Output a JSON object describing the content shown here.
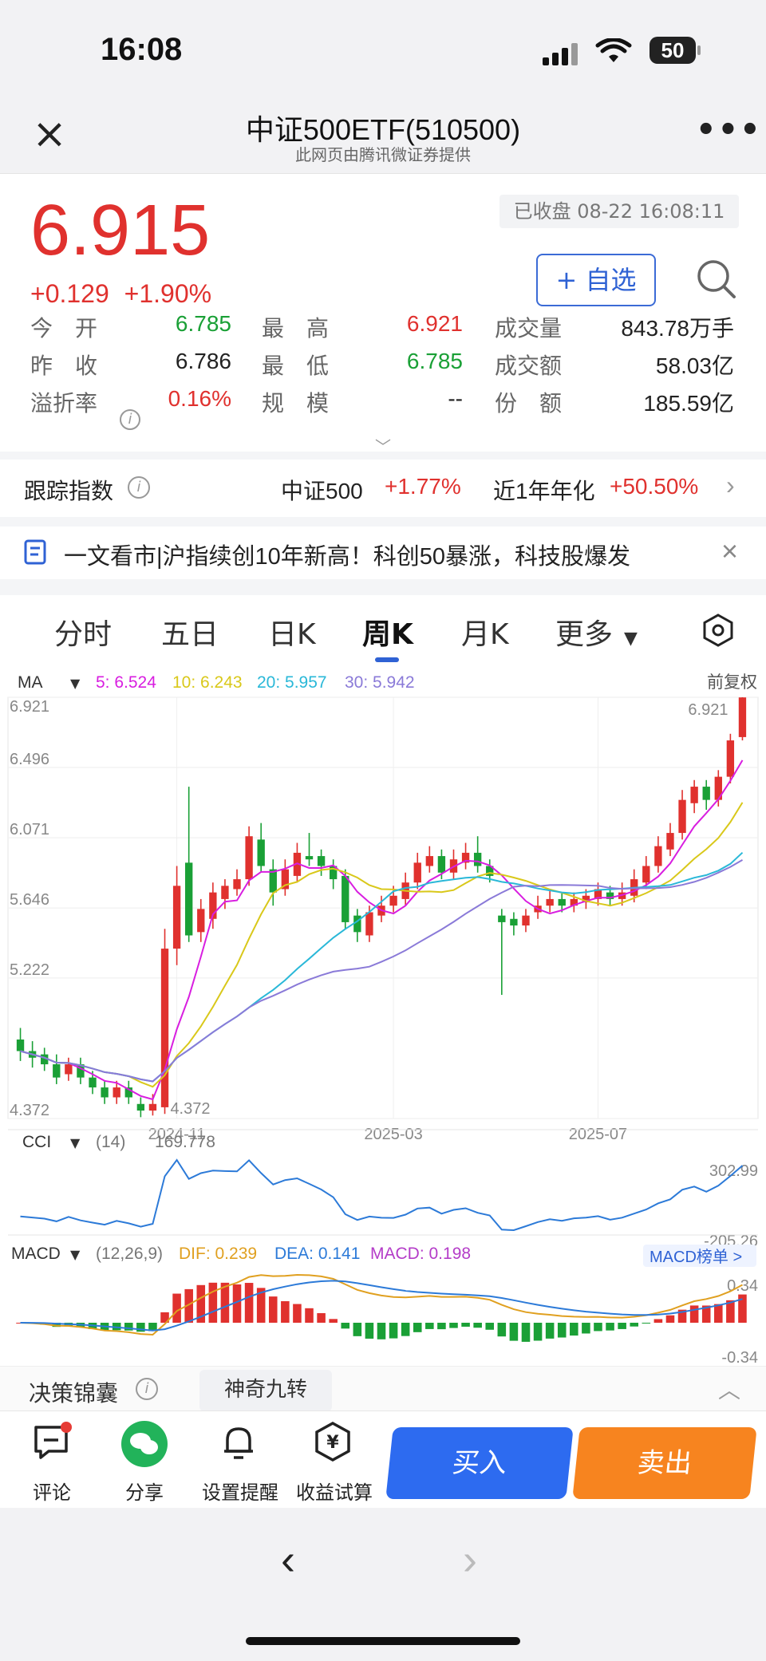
{
  "status_bar": {
    "time": "16:08",
    "battery": "50"
  },
  "nav": {
    "title": "中证500ETF(510500)",
    "subtitle": "此网页由腾讯微证券提供"
  },
  "quote": {
    "price": "6.915",
    "change": "+0.129",
    "change_pct": "+1.90%",
    "status": "已收盘 08-22 16:08:11",
    "watch_label": "+ 自选",
    "stats": [
      [
        {
          "label": "今　开",
          "value": "6.785",
          "color": "g"
        },
        {
          "label": "最　高",
          "value": "6.921",
          "color": "r"
        },
        {
          "label": "成交量",
          "value": "843.78万手",
          "color": "k"
        }
      ],
      [
        {
          "label": "昨　收",
          "value": "6.786",
          "color": "k"
        },
        {
          "label": "最　低",
          "value": "6.785",
          "color": "g"
        },
        {
          "label": "成交额",
          "value": "58.03亿",
          "color": "k"
        }
      ],
      [
        {
          "label": "溢折率",
          "value": "0.16%",
          "color": "r"
        },
        {
          "label": "规　模",
          "value": "--",
          "color": "k"
        },
        {
          "label": "份　额",
          "value": "185.59亿",
          "color": "k"
        }
      ]
    ]
  },
  "tracking": {
    "label": "跟踪指数",
    "index": "中证500",
    "index_chg": "+1.77%",
    "annual_label": "近1年年化",
    "annual": "+50.50%"
  },
  "news": {
    "text": "一文看市|沪指续创10年新高！科创50暴涨，科技股爆发"
  },
  "tabs": [
    "分时",
    "五日",
    "日K",
    "周K",
    "月K",
    "更多"
  ],
  "active_tab": "周K",
  "ma_legend": {
    "label": "MA",
    "ma5": "5: 6.524",
    "ma10": "10: 6.243",
    "ma20": "20: 5.957",
    "ma30": "30: 5.942",
    "adj": "前复权"
  },
  "cci_legend": {
    "label": "CCI",
    "params": "(14)",
    "value": "169.778",
    "max": "302.99",
    "min": "-205.26"
  },
  "macd_legend": {
    "label": "MACD",
    "params": "(12,26,9)",
    "dif": "DIF: 0.239",
    "dea": "DEA: 0.141",
    "macd": "MACD: 0.198",
    "rank": "MACD榜单 >",
    "max": "0.34",
    "min": "-0.34"
  },
  "decision": {
    "label": "决策锦囊",
    "badge": "神奇九转"
  },
  "colors": {
    "up": "#e0312e",
    "down": "#1aa036",
    "ma5": "#d81ee0",
    "ma10": "#d9c81a",
    "ma20": "#2ab8d8",
    "ma30": "#8a7ad8",
    "accent": "#2f62d4"
  },
  "chart_data": {
    "type": "candlestick",
    "title": "",
    "xlabel": "",
    "ylabel": "",
    "y_ticks": [
      "6.921",
      "6.496",
      "6.071",
      "5.646",
      "5.222",
      "4.372"
    ],
    "ylim": [
      4.372,
      6.921
    ],
    "x_ticks": [
      {
        "label": "2024-11",
        "i": 13
      },
      {
        "label": "2025-03",
        "i": 31
      },
      {
        "label": "2025-07",
        "i": 48
      }
    ],
    "last_high_label": "6.921",
    "last_low_label": "4.372",
    "candles": [
      [
        4.85,
        4.78,
        4.92,
        4.72
      ],
      [
        4.78,
        4.74,
        4.84,
        4.68
      ],
      [
        4.76,
        4.7,
        4.8,
        4.66
      ],
      [
        4.7,
        4.62,
        4.76,
        4.58
      ],
      [
        4.64,
        4.7,
        4.74,
        4.6
      ],
      [
        4.7,
        4.62,
        4.74,
        4.58
      ],
      [
        4.62,
        4.56,
        4.66,
        4.52
      ],
      [
        4.56,
        4.5,
        4.6,
        4.46
      ],
      [
        4.5,
        4.56,
        4.6,
        4.46
      ],
      [
        4.56,
        4.5,
        4.6,
        4.46
      ],
      [
        4.46,
        4.42,
        4.5,
        4.38
      ],
      [
        4.42,
        4.46,
        4.52,
        4.39
      ],
      [
        4.44,
        5.4,
        5.52,
        4.4
      ],
      [
        5.4,
        5.78,
        5.9,
        5.3
      ],
      [
        5.92,
        5.48,
        6.38,
        5.44
      ],
      [
        5.5,
        5.64,
        5.7,
        5.44
      ],
      [
        5.58,
        5.74,
        5.8,
        5.52
      ],
      [
        5.7,
        5.78,
        5.82,
        5.64
      ],
      [
        5.76,
        5.82,
        5.88,
        5.72
      ],
      [
        5.82,
        6.08,
        6.14,
        5.78
      ],
      [
        6.06,
        5.9,
        6.16,
        5.86
      ],
      [
        5.88,
        5.74,
        5.94,
        5.66
      ],
      [
        5.76,
        5.88,
        5.94,
        5.72
      ],
      [
        5.84,
        5.98,
        6.04,
        5.8
      ],
      [
        5.96,
        5.94,
        6.1,
        5.9
      ],
      [
        5.96,
        5.9,
        6.0,
        5.84
      ],
      [
        5.9,
        5.82,
        5.94,
        5.76
      ],
      [
        5.84,
        5.56,
        5.88,
        5.52
      ],
      [
        5.6,
        5.5,
        5.64,
        5.44
      ],
      [
        5.48,
        5.62,
        5.66,
        5.44
      ],
      [
        5.6,
        5.66,
        5.72,
        5.56
      ],
      [
        5.66,
        5.72,
        5.78,
        5.62
      ],
      [
        5.7,
        5.8,
        5.86,
        5.66
      ],
      [
        5.8,
        5.92,
        5.98,
        5.76
      ],
      [
        5.9,
        5.96,
        6.02,
        5.86
      ],
      [
        5.96,
        5.86,
        6.0,
        5.82
      ],
      [
        5.86,
        5.94,
        6.0,
        5.82
      ],
      [
        5.92,
        5.98,
        6.04,
        5.88
      ],
      [
        5.98,
        5.9,
        6.08,
        5.86
      ],
      [
        5.9,
        5.84,
        5.94,
        5.8
      ],
      [
        5.6,
        5.56,
        5.64,
        5.12
      ],
      [
        5.58,
        5.54,
        5.62,
        5.48
      ],
      [
        5.54,
        5.6,
        5.64,
        5.5
      ],
      [
        5.62,
        5.66,
        5.72,
        5.58
      ],
      [
        5.66,
        5.7,
        5.76,
        5.62
      ],
      [
        5.7,
        5.66,
        5.74,
        5.62
      ],
      [
        5.66,
        5.7,
        5.74,
        5.62
      ],
      [
        5.68,
        5.72,
        5.76,
        5.64
      ],
      [
        5.7,
        5.76,
        5.8,
        5.66
      ],
      [
        5.74,
        5.7,
        5.78,
        5.66
      ],
      [
        5.7,
        5.74,
        5.8,
        5.66
      ],
      [
        5.72,
        5.82,
        5.88,
        5.68
      ],
      [
        5.8,
        5.9,
        5.96,
        5.76
      ],
      [
        5.9,
        6.02,
        6.08,
        5.86
      ],
      [
        6.0,
        6.1,
        6.16,
        5.96
      ],
      [
        6.1,
        6.3,
        6.36,
        6.06
      ],
      [
        6.28,
        6.38,
        6.42,
        6.22
      ],
      [
        6.38,
        6.3,
        6.42,
        6.24
      ],
      [
        6.3,
        6.44,
        6.48,
        6.26
      ],
      [
        6.44,
        6.66,
        6.7,
        6.4
      ],
      [
        6.68,
        6.92,
        6.921,
        6.66
      ]
    ]
  }
}
